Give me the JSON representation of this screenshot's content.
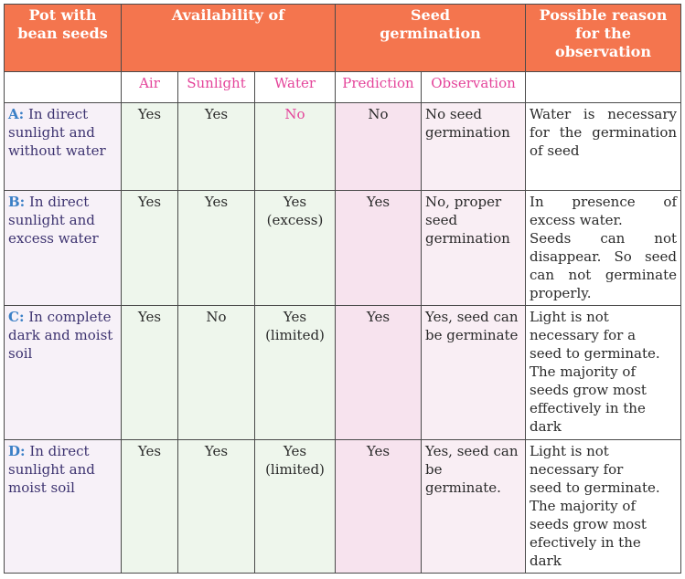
{
  "header": {
    "pot": "Pot with\nbean seeds",
    "availability": "Availability of",
    "germination": "Seed\ngermination",
    "reason": "Possible reason\nfor the\nobservation"
  },
  "subheader": {
    "air": "Air",
    "sunlight": "Sunlight",
    "water": "Water",
    "prediction": "Prediction",
    "observation": "Observation"
  },
  "rows": [
    {
      "tag": "A:",
      "pot": " In direct sunlight and without water",
      "air": "Yes",
      "sunlight": "Yes",
      "water": "No",
      "prediction": "No",
      "observation": "No seed germination",
      "reason": "Water is necessary for the germination of seed"
    },
    {
      "tag": "B:",
      "pot": " In direct sunlight and excess water",
      "air": "Yes",
      "sunlight": "Yes",
      "water": "Yes\n(excess)",
      "prediction": "Yes",
      "observation": "No, proper seed germination",
      "reason": "In presence of excess water.\nSeeds can not disappear. So seed can not germinate properly."
    },
    {
      "tag": "C:",
      "pot": " In complete dark and moist soil",
      "air": "Yes",
      "sunlight": "No",
      "water": "Yes\n(limited)",
      "prediction": "Yes",
      "observation": "Yes, seed can be germinate",
      "reason": "Light is not\nnecessary for a\nseed to germinate.\nThe majority of\nseeds grow most\neffectively in the\ndark"
    },
    {
      "tag": "D:",
      "pot": " In direct sunlight and moist soil",
      "air": "Yes",
      "sunlight": "Yes",
      "water": "Yes\n(limited)",
      "prediction": "Yes",
      "observation": "Yes, seed can be germinate.",
      "reason": "Light is not\nnecessary for\nseed to germinate.\nThe majority of\nseeds grow most\nefectively in the\ndark"
    }
  ]
}
